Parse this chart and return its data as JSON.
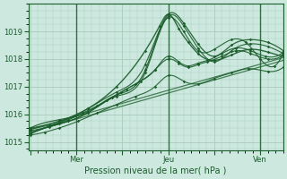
{
  "background_color": "#cce8df",
  "plot_bg_color": "#cce8df",
  "grid_color": "#aaccbb",
  "line_color": "#1a5c2a",
  "xlabel": "Pression niveau de la mer( hPa )",
  "yticks": [
    1015,
    1016,
    1017,
    1018,
    1019
  ],
  "xtick_labels": [
    "",
    "Mer",
    "",
    "Jeu",
    "",
    "Ven"
  ],
  "xtick_positions": [
    0,
    48,
    96,
    144,
    192,
    240
  ],
  "ylim": [
    1014.7,
    1020.0
  ],
  "xlim": [
    -2,
    264
  ]
}
